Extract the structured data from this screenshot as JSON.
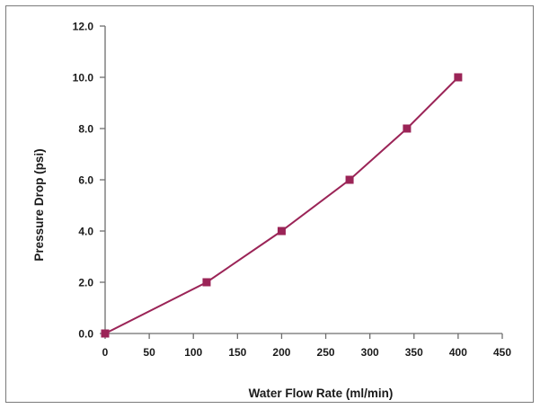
{
  "chart_data": {
    "type": "line",
    "title": "",
    "xlabel": "Water Flow Rate (ml/min)",
    "ylabel": "Pressure Drop (psi)",
    "xlim": [
      0,
      450
    ],
    "ylim": [
      0,
      12
    ],
    "x_ticks": [
      0,
      50,
      100,
      150,
      200,
      250,
      300,
      350,
      400,
      450
    ],
    "x_tick_labels": [
      "0",
      "50",
      "100",
      "150",
      "200",
      "250",
      "300",
      "350",
      "400",
      "450"
    ],
    "y_ticks": [
      0,
      2,
      4,
      6,
      8,
      10,
      12
    ],
    "y_tick_labels": [
      "0.0",
      "2.0",
      "4.0",
      "6.0",
      "8.0",
      "10.0",
      "12.0"
    ],
    "grid": false,
    "legend": "none",
    "series": [
      {
        "color": "#9b2457",
        "marker": "square",
        "x": [
          0,
          115,
          200,
          277,
          342,
          400
        ],
        "y": [
          0,
          2,
          4,
          6,
          8,
          10
        ]
      }
    ]
  }
}
